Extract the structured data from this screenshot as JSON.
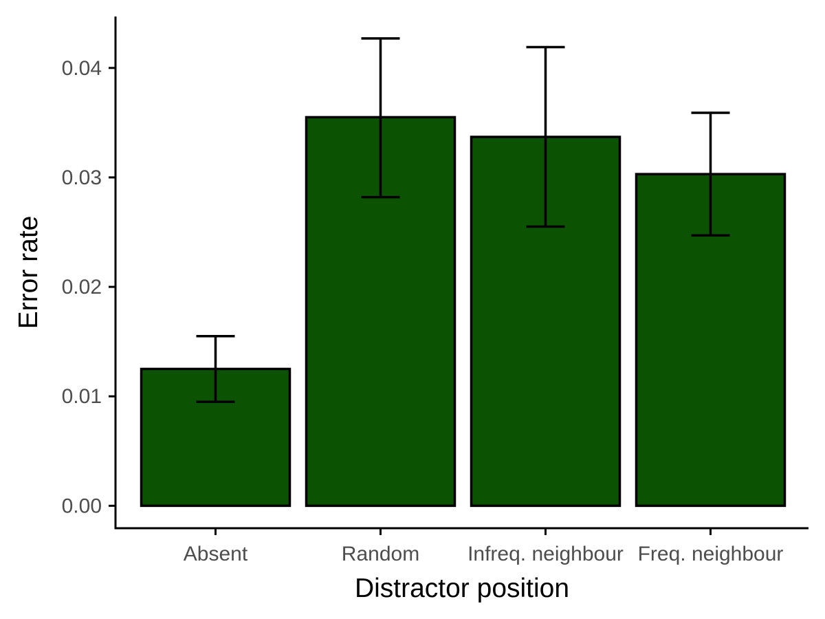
{
  "chart_data": {
    "type": "bar",
    "title": "",
    "xlabel": "Distractor position",
    "ylabel": "Error rate",
    "categories": [
      "Absent",
      "Random",
      "Infreq. neighbour",
      "Freq. neighbour"
    ],
    "values": [
      0.0125,
      0.0355,
      0.0337,
      0.0303
    ],
    "error_low": [
      0.0095,
      0.0282,
      0.0255,
      0.0247
    ],
    "error_high": [
      0.0155,
      0.0427,
      0.0419,
      0.0359
    ],
    "ylim": [
      -0.00205,
      0.0447
    ],
    "yticks": [
      0,
      0.01,
      0.02,
      0.03,
      0.04
    ],
    "ytick_labels": [
      "0.00",
      "0.01",
      "0.02",
      "0.03",
      "0.04"
    ],
    "grid": false,
    "legend": "none",
    "colors": {
      "bar_fill": "#0c5203",
      "bar_stroke": "#000000",
      "axis": "#000000",
      "tick_label": "#4d4d4d"
    }
  }
}
